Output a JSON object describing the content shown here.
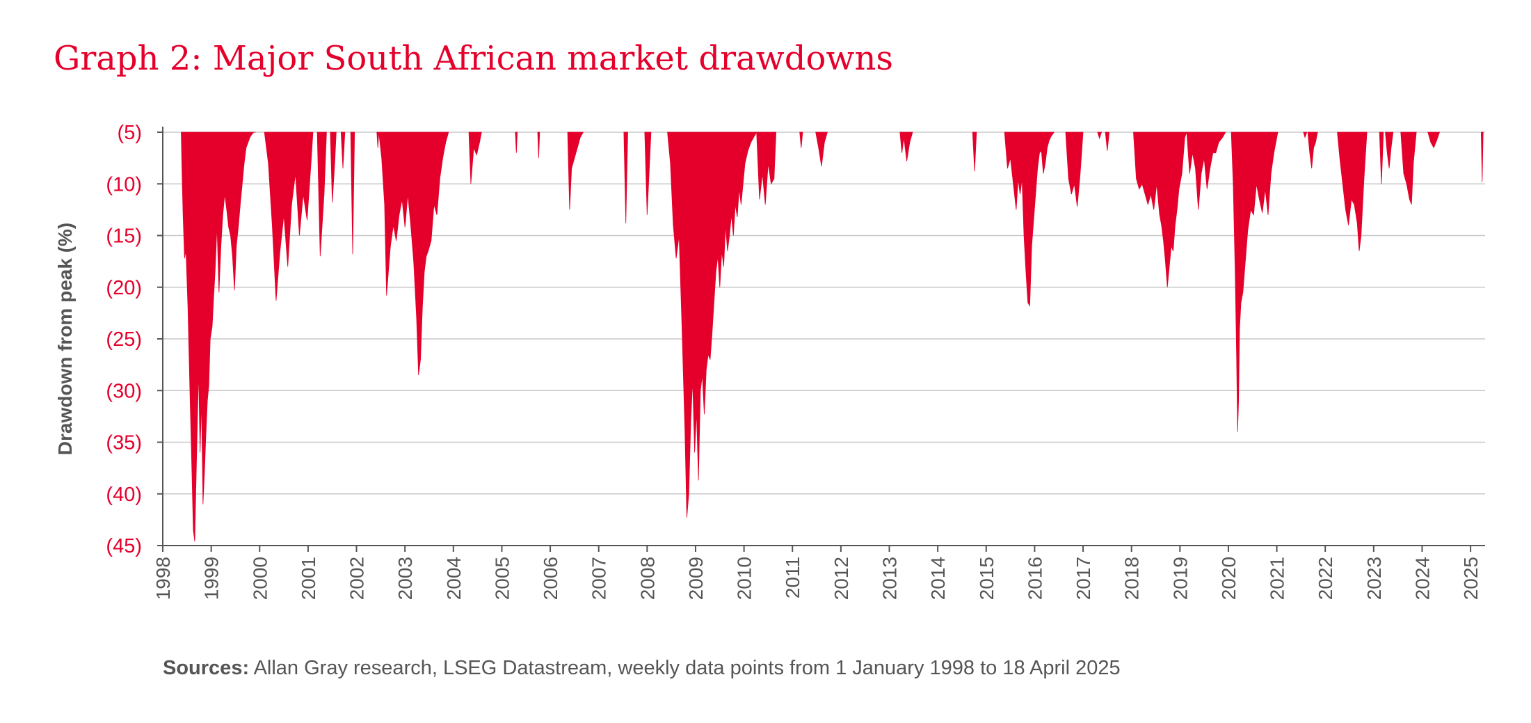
{
  "title": "Graph 2: Major South African market drawdowns",
  "source": {
    "label": "Sources:",
    "text": "Allan Gray research, LSEG Datastream, weekly data points from 1 January 1998 to 18 April 2025"
  },
  "colors": {
    "accent": "#e4002b",
    "grid": "#c8c8c8",
    "axis": "#555555",
    "axis_text": "#555555",
    "label_text": "#555555"
  },
  "chart_data": {
    "type": "area",
    "title": "Graph 2: Major South African market drawdowns",
    "xlabel": "",
    "ylabel": "Drawdown from peak (%)",
    "xlim": [
      1998.0,
      2025.3
    ],
    "ylim": [
      -45,
      -5
    ],
    "yticks": [
      -5,
      -10,
      -15,
      -20,
      -25,
      -30,
      -35,
      -40,
      -45
    ],
    "ytick_labels": [
      "(5)",
      "(10)",
      "(15)",
      "(20)",
      "(25)",
      "(30)",
      "(35)",
      "(40)",
      "(45)"
    ],
    "xticks": [
      1998,
      1999,
      2000,
      2001,
      2002,
      2003,
      2004,
      2005,
      2006,
      2007,
      2008,
      2009,
      2010,
      2011,
      2012,
      2013,
      2014,
      2015,
      2016,
      2017,
      2018,
      2019,
      2020,
      2021,
      2022,
      2023,
      2024,
      2025
    ],
    "xtick_labels": [
      "1998",
      "1999",
      "2000",
      "2001",
      "2002",
      "2003",
      "2004",
      "2005",
      "2006",
      "2007",
      "2008",
      "2009",
      "2010",
      "2011",
      "2012",
      "2013",
      "2014",
      "2015",
      "2016",
      "2017",
      "2018",
      "2019",
      "2020",
      "2021",
      "2022",
      "2023",
      "2024",
      "2025"
    ],
    "grid": true,
    "legend": "none",
    "series": [
      {
        "x": [
          1998.38,
          1998.4,
          1998.42,
          1998.45,
          1998.48,
          1998.52,
          1998.56,
          1998.6,
          1998.63,
          1998.66,
          1998.68,
          1998.71,
          1998.74,
          1998.77,
          1998.8,
          1998.83,
          1998.86,
          1998.89,
          1998.92,
          1998.95,
          1998.98,
          1999.02,
          1999.05,
          1999.08,
          1999.12,
          1999.16,
          1999.2,
          1999.24,
          1999.28,
          1999.32,
          1999.36,
          1999.4,
          1999.44,
          1999.48,
          1999.52,
          1999.56,
          1999.6,
          1999.64,
          1999.68,
          1999.72,
          1999.76,
          1999.8,
          1999.84,
          1999.88,
          1999.92
        ],
        "y": [
          -5.0,
          -9.5,
          -13.0,
          -17.2,
          -16.5,
          -22.0,
          -30.0,
          -37.5,
          -43.5,
          -44.6,
          -40.0,
          -34.0,
          -28.0,
          -36.0,
          -31.0,
          -41.0,
          -38.0,
          -34.2,
          -31.0,
          -29.5,
          -25.0,
          -23.8,
          -21.0,
          -18.5,
          -14.0,
          -20.5,
          -16.0,
          -13.0,
          -11.0,
          -12.5,
          -14.2,
          -15.0,
          -17.0,
          -20.3,
          -16.0,
          -14.2,
          -12.0,
          -10.0,
          -8.0,
          -6.5,
          -6.0,
          -5.5,
          -5.2,
          -5.0,
          -5.0
        ]
      },
      {
        "x": [
          2000.1,
          2000.18,
          2000.26,
          2000.34,
          2000.42,
          2000.5,
          2000.58,
          2000.66,
          2000.74,
          2000.82,
          2000.9,
          2000.98,
          2001.06,
          2001.1
        ],
        "y": [
          -5.0,
          -8.0,
          -14.0,
          -21.3,
          -16.5,
          -13.0,
          -18.0,
          -12.0,
          -9.0,
          -15.0,
          -11.0,
          -13.5,
          -8.0,
          -5.0
        ]
      },
      {
        "x": [
          2001.19,
          2001.25,
          2001.33,
          2001.38
        ],
        "y": [
          -5.0,
          -17.0,
          -11.0,
          -5.0
        ]
      },
      {
        "x": [
          2001.46,
          2001.5,
          2001.55,
          2001.58
        ],
        "y": [
          -5.0,
          -11.8,
          -8.0,
          -5.0
        ]
      },
      {
        "x": [
          2001.68,
          2001.72,
          2001.76
        ],
        "y": [
          -5.0,
          -8.5,
          -5.0
        ]
      },
      {
        "x": [
          2001.88,
          2001.92,
          2001.96
        ],
        "y": [
          -5.0,
          -16.8,
          -5.0
        ]
      },
      {
        "x": [
          2002.42,
          2002.44,
          2002.46
        ],
        "y": [
          -5.0,
          -6.5,
          -5.0
        ]
      },
      {
        "x": [
          2002.46,
          2002.52,
          2002.58,
          2002.62,
          2002.7,
          2002.76,
          2002.82,
          2002.88,
          2002.94,
          2003.0,
          2003.06,
          2003.12,
          2003.18,
          2003.24,
          2003.28,
          2003.32,
          2003.36,
          2003.4,
          2003.44,
          2003.48,
          2003.54,
          2003.6,
          2003.66,
          2003.72,
          2003.78,
          2003.84,
          2003.9
        ],
        "y": [
          -5.0,
          -7.5,
          -12.0,
          -20.8,
          -16.0,
          -14.0,
          -15.5,
          -13.0,
          -11.5,
          -14.2,
          -11.0,
          -14.0,
          -17.5,
          -23.0,
          -28.5,
          -27.0,
          -22.0,
          -18.5,
          -17.0,
          -16.5,
          -15.5,
          -12.0,
          -13.0,
          -9.5,
          -7.5,
          -6.0,
          -5.0
        ]
      },
      {
        "x": [
          2004.32,
          2004.36,
          2004.42,
          2004.48,
          2004.54,
          2004.58
        ],
        "y": [
          -5.0,
          -10.0,
          -6.5,
          -7.2,
          -6.0,
          -5.0
        ]
      },
      {
        "x": [
          2005.28,
          2005.3,
          2005.32
        ],
        "y": [
          -5.0,
          -7.0,
          -5.0
        ]
      },
      {
        "x": [
          2005.74,
          2005.76,
          2005.78
        ],
        "y": [
          -5.0,
          -7.5,
          -5.0
        ]
      },
      {
        "x": [
          2006.36,
          2006.4,
          2006.44,
          2006.5,
          2006.56,
          2006.62,
          2006.68
        ],
        "y": [
          -5.0,
          -12.5,
          -8.5,
          -7.5,
          -6.5,
          -5.5,
          -5.0
        ]
      },
      {
        "x": [
          2007.52,
          2007.56,
          2007.6
        ],
        "y": [
          -5.0,
          -13.8,
          -5.0
        ]
      },
      {
        "x": [
          2007.95,
          2008.0,
          2008.04,
          2008.08
        ],
        "y": [
          -5.0,
          -13.0,
          -9.0,
          -5.0
        ]
      },
      {
        "x": [
          2008.42,
          2008.48,
          2008.54,
          2008.6,
          2008.66,
          2008.72,
          2008.78,
          2008.82,
          2008.86,
          2008.9,
          2008.94,
          2008.98,
          2009.02,
          2009.06,
          2009.1,
          2009.14,
          2009.18,
          2009.22,
          2009.26,
          2009.3,
          2009.34,
          2009.38,
          2009.42,
          2009.46,
          2009.5,
          2009.54,
          2009.58,
          2009.62,
          2009.66,
          2009.7,
          2009.74,
          2009.78,
          2009.82,
          2009.86,
          2009.9,
          2009.94,
          2009.98,
          2010.02,
          2010.08,
          2010.14,
          2010.2,
          2010.26
        ],
        "y": [
          -5.0,
          -8.0,
          -14.0,
          -17.2,
          -15.0,
          -24.0,
          -34.0,
          -42.3,
          -40.0,
          -33.0,
          -29.0,
          -36.0,
          -32.0,
          -38.7,
          -30.0,
          -28.5,
          -32.3,
          -28.0,
          -26.5,
          -27.0,
          -24.5,
          -21.5,
          -18.5,
          -17.0,
          -20.0,
          -16.5,
          -18.0,
          -14.0,
          -16.5,
          -15.0,
          -13.0,
          -15.0,
          -12.0,
          -13.2,
          -10.5,
          -12.0,
          -10.0,
          -8.0,
          -6.8,
          -6.0,
          -5.5,
          -5.0
        ]
      },
      {
        "x": [
          2010.26,
          2010.32,
          2010.38,
          2010.44,
          2010.5,
          2010.56,
          2010.62,
          2010.66
        ],
        "y": [
          -5.0,
          -11.5,
          -9.0,
          -12.0,
          -8.0,
          -10.0,
          -9.5,
          -5.0
        ]
      },
      {
        "x": [
          2011.15,
          2011.18,
          2011.21
        ],
        "y": [
          -5.0,
          -6.5,
          -5.0
        ]
      },
      {
        "x": [
          2011.48,
          2011.54,
          2011.6,
          2011.66,
          2011.72
        ],
        "y": [
          -5.0,
          -6.5,
          -8.3,
          -6.0,
          -5.0
        ]
      },
      {
        "x": [
          2013.22,
          2013.26,
          2013.3,
          2013.36,
          2013.42,
          2013.48
        ],
        "y": [
          -5.0,
          -7.0,
          -5.5,
          -7.8,
          -6.0,
          -5.0
        ]
      },
      {
        "x": [
          2014.72,
          2014.76,
          2014.8
        ],
        "y": [
          -5.0,
          -8.8,
          -5.0
        ]
      },
      {
        "x": [
          2015.38,
          2015.44,
          2015.5,
          2015.56,
          2015.62,
          2015.66,
          2015.7,
          2015.74,
          2015.78,
          2015.82,
          2015.86,
          2015.9,
          2015.94,
          2015.98,
          2016.02,
          2016.06,
          2016.1,
          2016.14,
          2016.18,
          2016.22,
          2016.26,
          2016.3,
          2016.34,
          2016.4
        ],
        "y": [
          -5.0,
          -8.5,
          -7.5,
          -10.0,
          -12.5,
          -9.5,
          -11.0,
          -9.5,
          -15.0,
          -18.5,
          -21.5,
          -21.8,
          -16.0,
          -13.5,
          -11.0,
          -8.5,
          -7.0,
          -6.8,
          -9.0,
          -8.0,
          -6.5,
          -5.8,
          -5.4,
          -5.0
        ]
      },
      {
        "x": [
          2016.64,
          2016.7,
          2016.76,
          2016.82,
          2016.88,
          2016.94,
          2017.0
        ],
        "y": [
          -5.0,
          -9.5,
          -11.0,
          -10.0,
          -12.2,
          -9.0,
          -5.0
        ]
      },
      {
        "x": [
          2017.3,
          2017.34,
          2017.38
        ],
        "y": [
          -5.0,
          -5.6,
          -5.0
        ]
      },
      {
        "x": [
          2017.46,
          2017.5,
          2017.54
        ],
        "y": [
          -5.0,
          -6.8,
          -5.0
        ]
      },
      {
        "x": [
          2018.04,
          2018.1,
          2018.16,
          2018.22,
          2018.28,
          2018.34,
          2018.4,
          2018.46,
          2018.52,
          2018.58,
          2018.62,
          2018.66,
          2018.7,
          2018.74,
          2018.78,
          2018.82,
          2018.86,
          2018.9,
          2018.94,
          2018.98,
          2019.04,
          2019.1,
          2019.14
        ],
        "y": [
          -5.0,
          -9.5,
          -10.5,
          -10.0,
          -11.0,
          -12.0,
          -11.0,
          -12.5,
          -10.0,
          -13.0,
          -14.0,
          -15.5,
          -17.5,
          -20.0,
          -18.0,
          -16.0,
          -16.5,
          -14.0,
          -12.5,
          -10.5,
          -9.0,
          -5.5,
          -5.0
        ]
      },
      {
        "x": [
          2019.14,
          2019.2,
          2019.26,
          2019.32,
          2019.38,
          2019.44,
          2019.5,
          2019.56,
          2019.62,
          2019.68,
          2019.74,
          2019.8,
          2019.88,
          2019.94
        ],
        "y": [
          -5.0,
          -9.0,
          -7.0,
          -8.5,
          -12.5,
          -9.0,
          -7.5,
          -10.5,
          -8.5,
          -7.0,
          -7.0,
          -6.0,
          -5.5,
          -5.0
        ]
      },
      {
        "x": [
          2020.06,
          2020.1,
          2020.14,
          2020.17,
          2020.19,
          2020.21,
          2020.23,
          2020.26,
          2020.3,
          2020.35,
          2020.4,
          2020.46,
          2020.52,
          2020.58,
          2020.64,
          2020.7,
          2020.76,
          2020.82,
          2020.88,
          2020.94,
          2021.0,
          2021.02
        ],
        "y": [
          -5.0,
          -10.0,
          -18.5,
          -27.0,
          -34.0,
          -31.0,
          -24.0,
          -21.5,
          -20.5,
          -17.5,
          -14.5,
          -12.5,
          -13.0,
          -10.0,
          -11.5,
          -12.8,
          -10.5,
          -13.0,
          -9.0,
          -7.0,
          -5.5,
          -5.0
        ]
      },
      {
        "x": [
          2021.55,
          2021.58,
          2021.62
        ],
        "y": [
          -5.0,
          -5.5,
          -5.0
        ]
      },
      {
        "x": [
          2021.64,
          2021.68,
          2021.72,
          2021.76,
          2021.8,
          2021.84
        ],
        "y": [
          -5.0,
          -7.0,
          -8.5,
          -6.5,
          -6.0,
          -5.0
        ]
      },
      {
        "x": [
          2022.25,
          2022.3,
          2022.36,
          2022.42,
          2022.48,
          2022.54,
          2022.6,
          2022.66,
          2022.7,
          2022.74,
          2022.8,
          2022.86
        ],
        "y": [
          -5.0,
          -7.5,
          -10.0,
          -12.5,
          -14.0,
          -11.5,
          -12.0,
          -13.8,
          -16.5,
          -15.0,
          -9.5,
          -5.0
        ]
      },
      {
        "x": [
          2023.12,
          2023.16,
          2023.2
        ],
        "y": [
          -5.0,
          -10.0,
          -5.0
        ]
      },
      {
        "x": [
          2023.24,
          2023.28,
          2023.32,
          2023.36,
          2023.4
        ],
        "y": [
          -5.0,
          -7.0,
          -8.5,
          -6.5,
          -5.0
        ]
      },
      {
        "x": [
          2023.56,
          2023.62,
          2023.68,
          2023.74,
          2023.78,
          2023.82,
          2023.88
        ],
        "y": [
          -5.0,
          -9.0,
          -10.0,
          -11.5,
          -12.0,
          -8.0,
          -5.0
        ]
      },
      {
        "x": [
          2024.12,
          2024.18,
          2024.24,
          2024.3,
          2024.36
        ],
        "y": [
          -5.0,
          -6.0,
          -6.5,
          -5.8,
          -5.0
        ]
      },
      {
        "x": [
          2025.22,
          2025.24,
          2025.26
        ],
        "y": [
          -5.0,
          -9.8,
          -5.0
        ]
      }
    ]
  }
}
